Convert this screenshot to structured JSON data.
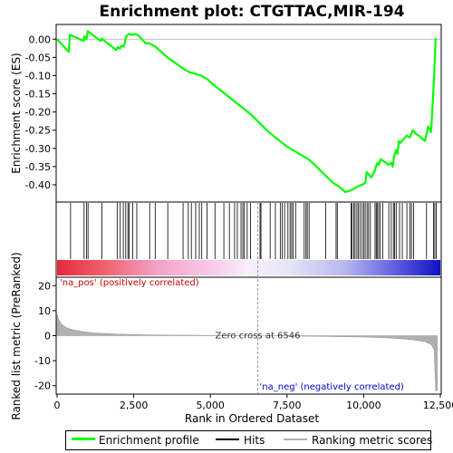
{
  "chart_data": {
    "type": "line",
    "title": "Enrichment plot: CTGTTAC,MIR-194",
    "panels": {
      "enrichment": {
        "ylabel": "Enrichment score (ES)",
        "ylim": [
          -0.445,
          0.038
        ],
        "yticks": [
          0.0,
          -0.05,
          -0.1,
          -0.15,
          -0.2,
          -0.25,
          -0.3,
          -0.35,
          -0.4
        ],
        "ytick_labels": [
          "0.00",
          "-0.05",
          "-0.10",
          "-0.15",
          "-0.20",
          "-0.25",
          "-0.30",
          "-0.35",
          "-0.40"
        ],
        "series": {
          "name": "Enrichment profile",
          "color": "#00ff00",
          "x": [
            0,
            380,
            420,
            870,
            890,
            960,
            1000,
            1420,
            1450,
            1930,
            1970,
            2050,
            2100,
            2180,
            2250,
            2280,
            2350,
            2420,
            2500,
            2600,
            2700,
            2900,
            3000,
            3200,
            3600,
            4100,
            4300,
            4500,
            4700,
            4900,
            5100,
            5400,
            5700,
            6000,
            6300,
            6600,
            6900,
            7200,
            7500,
            7800,
            8000,
            8200,
            8400,
            8700,
            9000,
            9200,
            9400,
            9600,
            9700,
            9800,
            9950,
            10050,
            10100,
            10150,
            10250,
            10350,
            10400,
            10450,
            10500,
            10550,
            10650,
            10800,
            10900,
            10950,
            11000,
            11050,
            11100,
            11150,
            11200,
            11300,
            11400,
            11500,
            11600,
            11700,
            11800,
            12000,
            12100,
            12200,
            12250,
            12300,
            12350
          ],
          "y": [
            0.0,
            -0.035,
            0.012,
            -0.005,
            0.008,
            0.0,
            0.022,
            -0.005,
            0.002,
            -0.03,
            -0.022,
            -0.026,
            -0.018,
            -0.02,
            0.006,
            0.01,
            0.015,
            0.011,
            0.014,
            0.013,
            0.006,
            -0.012,
            -0.011,
            -0.02,
            -0.05,
            -0.08,
            -0.09,
            -0.095,
            -0.1,
            -0.11,
            -0.125,
            -0.145,
            -0.165,
            -0.185,
            -0.205,
            -0.23,
            -0.255,
            -0.275,
            -0.295,
            -0.31,
            -0.32,
            -0.33,
            -0.345,
            -0.37,
            -0.395,
            -0.405,
            -0.42,
            -0.415,
            -0.41,
            -0.405,
            -0.4,
            -0.395,
            -0.365,
            -0.37,
            -0.38,
            -0.365,
            -0.35,
            -0.34,
            -0.345,
            -0.33,
            -0.335,
            -0.345,
            -0.34,
            -0.35,
            -0.32,
            -0.305,
            -0.315,
            -0.28,
            -0.285,
            -0.275,
            -0.265,
            -0.27,
            -0.25,
            -0.26,
            -0.265,
            -0.28,
            -0.24,
            -0.255,
            -0.18,
            -0.1,
            0.003
          ]
        }
      },
      "hits": {
        "name": "Hits",
        "color": "#000000",
        "positions": [
          440,
          880,
          960,
          1010,
          1460,
          1960,
          2060,
          2160,
          2240,
          2310,
          2350,
          2470,
          2600,
          3020,
          3200,
          3610,
          4110,
          4280,
          4380,
          4520,
          4640,
          4720,
          4890,
          5150,
          5440,
          5620,
          5790,
          5880,
          6000,
          6060,
          6110,
          6200,
          6310,
          6620,
          6650,
          6950,
          7120,
          7280,
          7340,
          7420,
          7530,
          7600,
          7650,
          7700,
          7780,
          8060,
          8120,
          8160,
          8220,
          8760,
          9100,
          9140,
          9590,
          9620,
          9680,
          9720,
          9780,
          9830,
          9880,
          9950,
          10000,
          10050,
          10110,
          10160,
          10220,
          10370,
          10410,
          10440,
          10490,
          10540,
          10620,
          10820,
          10900,
          10970,
          11010,
          11060,
          11170,
          11260,
          11410,
          11510,
          11560,
          11630,
          12050,
          12280,
          12320,
          12370
        ]
      },
      "metric": {
        "name": "Ranking metric scores",
        "color": "#b0b0b0",
        "ylabel": "Ranked list metric (PreRanked)",
        "ylim": [
          -23,
          23
        ],
        "yticks": [
          20,
          10,
          0,
          -10,
          -20
        ],
        "ytick_labels": [
          "20",
          "10",
          "0",
          "-10",
          "-20"
        ],
        "profile_x": [
          0,
          50,
          150,
          300,
          500,
          800,
          1200,
          2000,
          3000,
          4500,
          6546,
          8500,
          10000,
          11000,
          11600,
          12000,
          12200,
          12300,
          12350,
          12400
        ],
        "profile_y": [
          8.5,
          6.5,
          4.5,
          3.2,
          2.4,
          1.7,
          1.1,
          0.6,
          0.3,
          0.15,
          0.0,
          -0.25,
          -0.55,
          -1.0,
          -1.6,
          -2.4,
          -3.5,
          -5.5,
          -22.0,
          -22.0
        ]
      }
    },
    "xlabel": "Rank in Ordered Dataset",
    "xlim": [
      0,
      12500
    ],
    "xticks": [
      0,
      2500,
      5000,
      7500,
      10000,
      12500
    ],
    "xtick_labels": [
      "0",
      "2,500",
      "5,000",
      "7,500",
      "10,000",
      "12,500"
    ],
    "n_genes": 12400,
    "zero_cross": 6546,
    "zero_cross_label": "Zero cross at 6546",
    "pos_label": "'na_pos' (positively correlated)",
    "neg_label": "'na_neg' (negatively correlated)",
    "pos_color": "#cc0000",
    "neg_color": "#0000cc",
    "legend": [
      "Enrichment profile",
      "Hits",
      "Ranking metric scores"
    ]
  }
}
